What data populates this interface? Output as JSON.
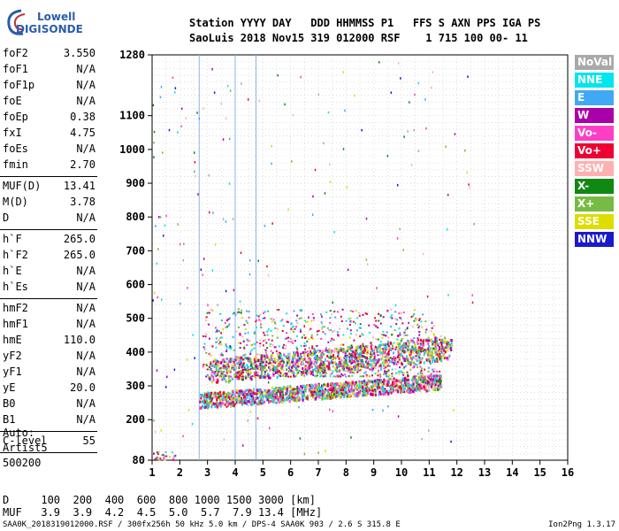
{
  "logo": {
    "line1": "Lowell",
    "line2": "DIGISONDE"
  },
  "header": {
    "line1": "Station YYYY DAY   DDD HHMMSS P1   FFS S AXN PPS IGA PS",
    "line2": "SaoLuis 2018 Nov15 319 012000 RSF    1 715 100 00- 11"
  },
  "params_group1": [
    {
      "k": "foF2",
      "v": "3.550"
    },
    {
      "k": "foF1",
      "v": "N/A"
    },
    {
      "k": "foF1p",
      "v": "N/A"
    },
    {
      "k": "foE",
      "v": "N/A"
    },
    {
      "k": "foEp",
      "v": "0.38"
    },
    {
      "k": "fxI",
      "v": "4.75"
    },
    {
      "k": "foEs",
      "v": "N/A"
    },
    {
      "k": "fmin",
      "v": "2.70"
    }
  ],
  "params_group2": [
    {
      "k": "MUF(D)",
      "v": "13.41"
    },
    {
      "k": "M(D)",
      "v": "3.78"
    },
    {
      "k": "D",
      "v": "N/A"
    }
  ],
  "params_group3": [
    {
      "k": "h`F",
      "v": "265.0"
    },
    {
      "k": "h`F2",
      "v": "265.0"
    },
    {
      "k": "h`E",
      "v": "N/A"
    },
    {
      "k": "h`Es",
      "v": "N/A"
    }
  ],
  "params_group4": [
    {
      "k": "hmF2",
      "v": "N/A"
    },
    {
      "k": "hmF1",
      "v": "N/A"
    },
    {
      "k": "hmE",
      "v": "110.0"
    },
    {
      "k": "yF2",
      "v": "N/A"
    },
    {
      "k": "yF1",
      "v": "N/A"
    },
    {
      "k": "yE",
      "v": "20.0"
    },
    {
      "k": "B0",
      "v": "N/A"
    },
    {
      "k": "B1",
      "v": "N/A"
    }
  ],
  "params_group5": [
    {
      "k": "C-level",
      "v": "55"
    }
  ],
  "auto": {
    "line1": "Auto:",
    "line2": "Artist5",
    "line3": "500200"
  },
  "legend": [
    {
      "label": "NoVal",
      "color": "#a9a9a9"
    },
    {
      "label": "NNE",
      "color": "#00e5ee"
    },
    {
      "label": "E",
      "color": "#3fa9f5"
    },
    {
      "label": "W",
      "color": "#aa00aa"
    },
    {
      "label": "Vo-",
      "color": "#ff3ec8"
    },
    {
      "label": "Vo+",
      "color": "#ee0033"
    },
    {
      "label": "SSW",
      "color": "#ffb0b0"
    },
    {
      "label": "X-",
      "color": "#118811"
    },
    {
      "label": "X+",
      "color": "#77bb44"
    },
    {
      "label": "SSE",
      "color": "#dddd00"
    },
    {
      "label": "NNW",
      "color": "#1a1acc"
    }
  ],
  "footer": {
    "line1": "D     100  200  400  600  800 1000 1500 3000 [km]",
    "line2": "MUF   3.9  3.9  4.2  4.5  5.0  5.7  7.9 13.4 [MHz]",
    "file": "SAA0K_2018319012000.RSF / 300fx256h 50 kHz 5.0 km / DPS-4 SAA0K 903 / 2.6 S 315.8 E",
    "version": "Ion2Png 1.3.17"
  },
  "chart_data": {
    "type": "scatter",
    "xlim": [
      1,
      16
    ],
    "ylim": [
      80,
      1280
    ],
    "x_ticks": [
      1,
      2,
      3,
      4,
      5,
      6,
      7,
      8,
      9,
      10,
      11,
      12,
      13,
      14,
      15,
      16
    ],
    "y_ticks": [
      80,
      200,
      300,
      400,
      500,
      600,
      700,
      800,
      900,
      1000,
      1100,
      1280
    ],
    "grid": true,
    "legend": "right",
    "fmin_marker_mhz": 2.7,
    "fxI_marker_mhz": 4.75,
    "traces": [
      {
        "name": "F-trace",
        "x_start": 2.7,
        "x_end": 11.4,
        "h_start": 250,
        "h_end": 305
      },
      {
        "name": "F-multihop",
        "x_start": 3.0,
        "x_end": 11.8,
        "h_start": 330,
        "h_end": 400
      }
    ]
  }
}
